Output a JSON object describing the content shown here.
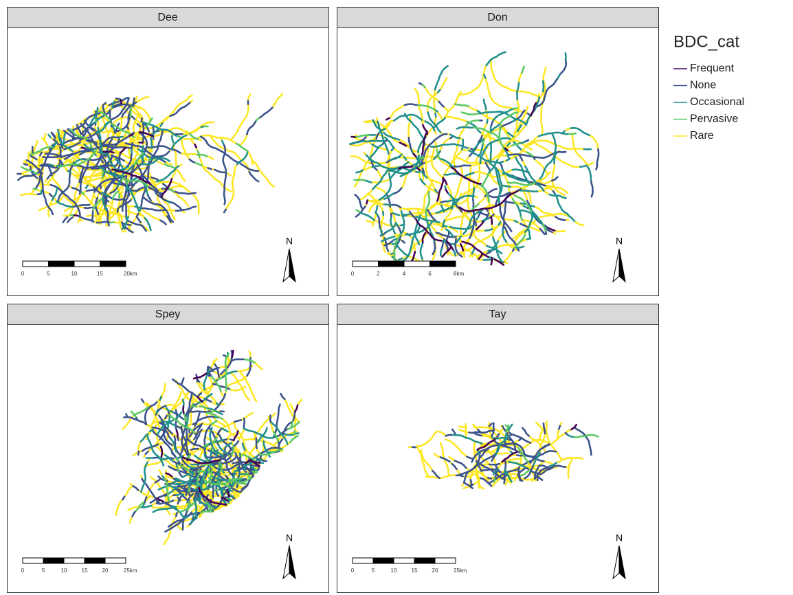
{
  "panels": [
    {
      "title": "Dee",
      "scale_labels": [
        "0",
        "5",
        "10",
        "15",
        "20km"
      ]
    },
    {
      "title": "Don",
      "scale_labels": [
        "0",
        "2",
        "4",
        "6",
        "8km"
      ]
    },
    {
      "title": "Spey",
      "scale_labels": [
        "0",
        "5",
        "10",
        "15",
        "20",
        "25km"
      ]
    },
    {
      "title": "Tay",
      "scale_labels": [
        "0",
        "5",
        "10",
        "15",
        "20",
        "25km"
      ]
    }
  ],
  "north_label": "N",
  "legend": {
    "title": "BDC_cat",
    "items": [
      {
        "label": "Frequent",
        "color": "#440154"
      },
      {
        "label": "None",
        "color": "#3b528b"
      },
      {
        "label": "Occasional",
        "color": "#21908c"
      },
      {
        "label": "Pervasive",
        "color": "#5dc863"
      },
      {
        "label": "Rare",
        "color": "#fde725"
      }
    ]
  }
}
